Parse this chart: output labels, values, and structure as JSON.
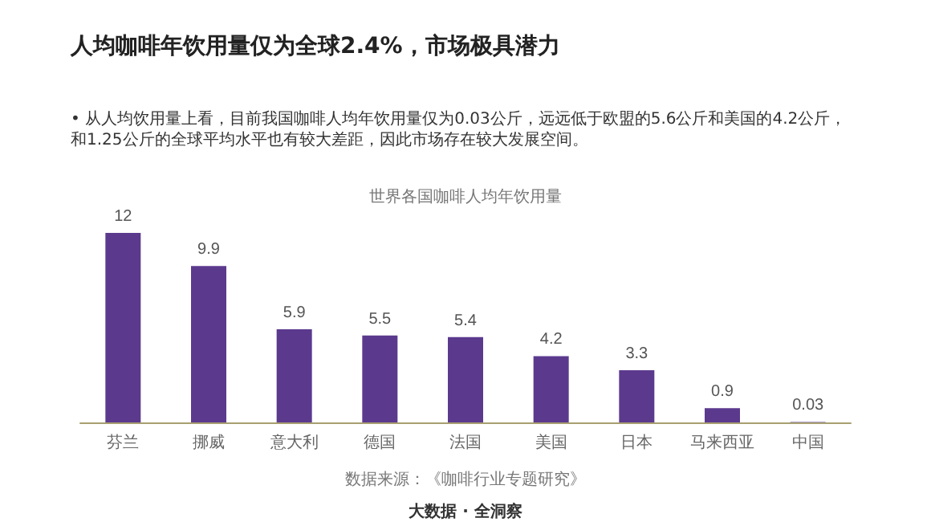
{
  "chart_data": {
    "type": "bar",
    "title": "人均咖啡年饮用量仅为全球2.4%，市场极具潜力",
    "subtitle": "• 从人均饮用量上看，目前我国咖啡人均年饮用量仅为0.03公斤，远远低于欧盟的5.6公斤和美国的4.2公斤，和1.25公斤的全球平均水平也有较大差距，因此市场存在较大发展空间。",
    "annotations": [
      "世界各国咖啡人均年饮用量",
      "数据来源：《咖啡行业专题研究》",
      "大数据 · 全洞察"
    ],
    "categories": [
      "芬兰",
      "挪威",
      "意大利",
      "德国",
      "法国",
      "美国",
      "日本",
      "马来西亚",
      "中国"
    ],
    "values": [
      12,
      9.9,
      5.9,
      5.5,
      5.4,
      4.2,
      3.3,
      0.9,
      0.03
    ],
    "color": "#5b3a8e",
    "data_labels": true
  }
}
